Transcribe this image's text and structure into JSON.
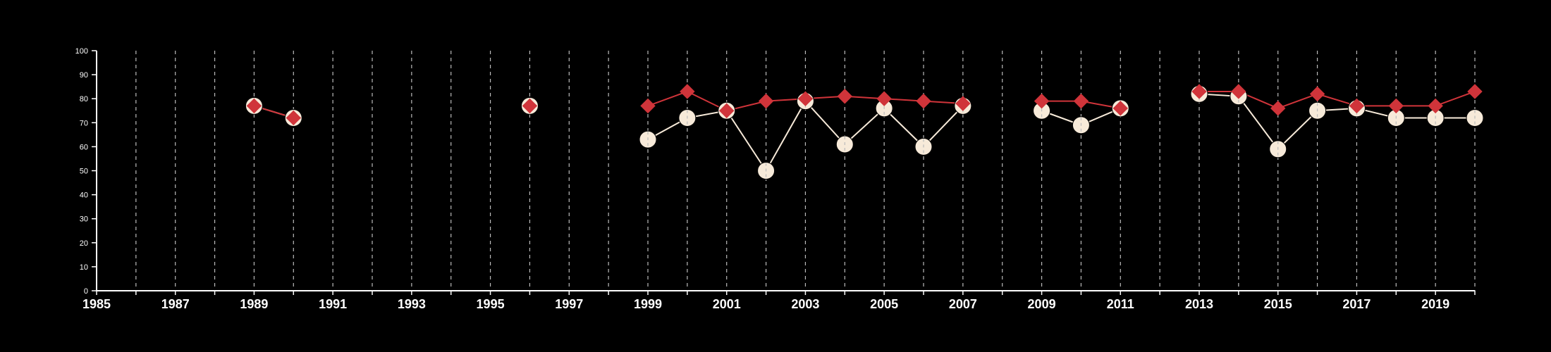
{
  "chart_data": {
    "type": "line",
    "xlim": [
      1985,
      2020
    ],
    "ylim": [
      0,
      100
    ],
    "x_ticks": [
      1985,
      1987,
      1989,
      1991,
      1993,
      1995,
      1997,
      1999,
      2001,
      2003,
      2005,
      2007,
      2009,
      2011,
      2013,
      2015,
      2017,
      2019
    ],
    "y_ticks": [
      0,
      10,
      20,
      30,
      40,
      50,
      60,
      70,
      80,
      90,
      100
    ],
    "grid": {
      "vertical_dashed": true,
      "every_year": true
    },
    "legend": "none",
    "series": [
      {
        "marker": "circle",
        "color": "#f7ead9",
        "x": [
          1989,
          1990,
          1996,
          1999,
          2000,
          2001,
          2002,
          2003,
          2004,
          2005,
          2006,
          2007,
          2009,
          2010,
          2011,
          2013,
          2014,
          2015,
          2016,
          2017,
          2018,
          2019,
          2020
        ],
        "y": [
          77,
          72,
          77,
          63,
          72,
          75,
          50,
          79,
          61,
          76,
          60,
          77,
          75,
          69,
          76,
          82,
          81,
          59,
          75,
          76,
          72,
          72,
          72
        ],
        "segments": [
          [
            1989,
            1990
          ],
          [
            1996,
            1996
          ],
          [
            1999,
            2007
          ],
          [
            2009,
            2011
          ],
          [
            2013,
            2020
          ]
        ]
      },
      {
        "marker": "diamond",
        "color": "#d0343a",
        "x": [
          1989,
          1990,
          1996,
          1999,
          2000,
          2001,
          2002,
          2003,
          2004,
          2005,
          2006,
          2007,
          2009,
          2010,
          2011,
          2013,
          2014,
          2015,
          2016,
          2017,
          2018,
          2019,
          2020
        ],
        "y": [
          77,
          72,
          77,
          77,
          83,
          75,
          79,
          80,
          81,
          80,
          79,
          78,
          79,
          79,
          76,
          83,
          83,
          76,
          82,
          77,
          77,
          77,
          83
        ],
        "segments": [
          [
            1989,
            1990
          ],
          [
            1996,
            1996
          ],
          [
            1999,
            2007
          ],
          [
            2009,
            2011
          ],
          [
            2013,
            2020
          ]
        ]
      }
    ]
  }
}
